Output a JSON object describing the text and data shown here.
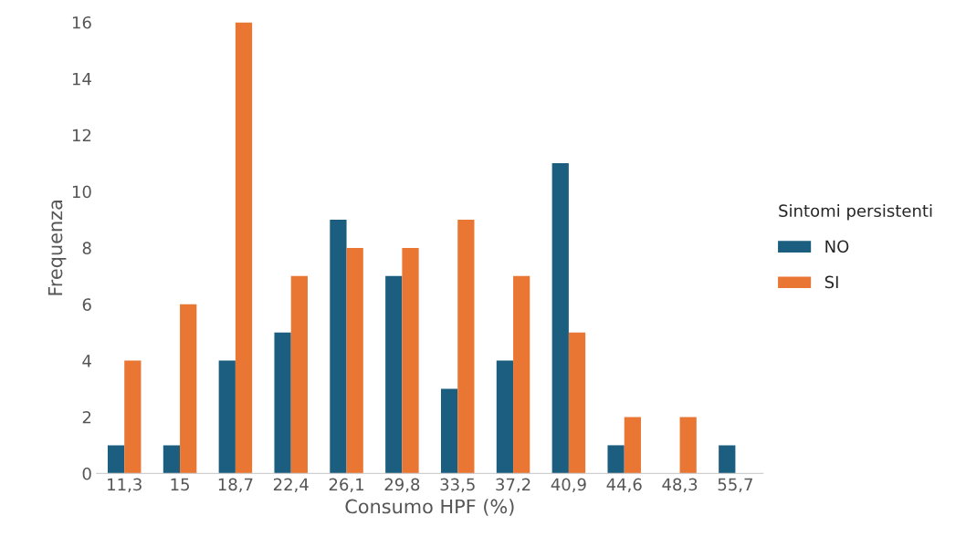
{
  "chart_data": {
    "type": "bar",
    "xlabel": "Consumo HPF (%)",
    "ylabel": "Frequenza",
    "legend_title": "Sintomi persistenti",
    "categories": [
      "11,3",
      "15",
      "18,7",
      "22,4",
      "26,1",
      "29,8",
      "33,5",
      "37,2",
      "40,9",
      "44,6",
      "48,3",
      "55,7"
    ],
    "series": [
      {
        "name": "NO",
        "color": "#1b5e80",
        "values": [
          1,
          1,
          4,
          5,
          9,
          7,
          3,
          4,
          11,
          1,
          null,
          1
        ]
      },
      {
        "name": "SI",
        "color": "#ea7634",
        "values": [
          4,
          6,
          16,
          7,
          8,
          8,
          9,
          7,
          5,
          2,
          2,
          null
        ]
      }
    ],
    "ylim": [
      0,
      16
    ],
    "yticks": [
      0,
      2,
      4,
      6,
      8,
      10,
      12,
      14,
      16
    ],
    "grid": false,
    "legend": "right"
  }
}
